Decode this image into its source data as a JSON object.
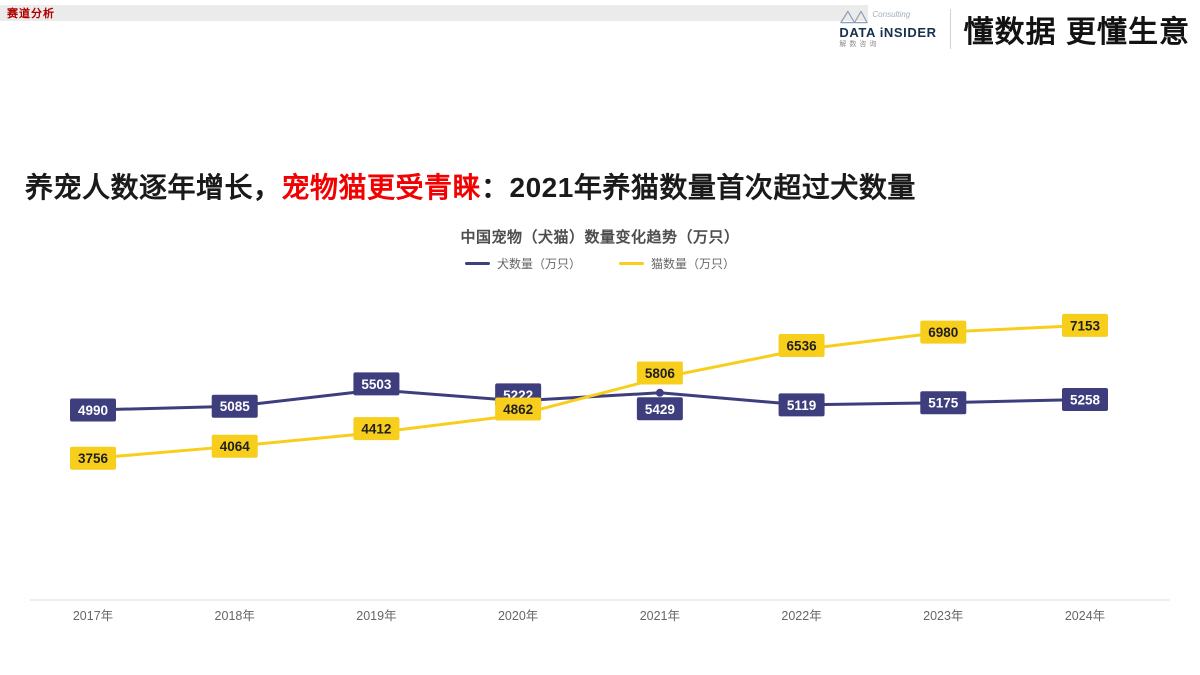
{
  "page": {
    "tag": "赛道分析",
    "brand": {
      "logo_text": "DATA iNSIDER",
      "logo_sub": "解数咨询",
      "logo_script": "Consulting",
      "slogan": "懂数据 更懂生意"
    },
    "title": {
      "part1": "养宠人数逐年增长，",
      "highlight": "宠物猫更受青睐",
      "part2": "：2021年养猫数量首次超过犬数量"
    },
    "colors": {
      "title_red": "#f30000",
      "dog_series": "#3e3e7e",
      "cat_series": "#f8ce1c"
    }
  },
  "chart_data": {
    "type": "line",
    "title": "中国宠物（犬猫）数量变化趋势（万只）",
    "categories": [
      "2017年",
      "2018年",
      "2019年",
      "2020年",
      "2021年",
      "2022年",
      "2023年",
      "2024年"
    ],
    "series": [
      {
        "name": "犬数量（万只）",
        "color": "#3e3e7e",
        "label_text_color": "#ffffff",
        "values": [
          4990,
          5085,
          5503,
          5222,
          5429,
          5119,
          5175,
          5258
        ]
      },
      {
        "name": "猫数量（万只）",
        "color": "#f8ce1c",
        "label_text_color": "#1f1f1f",
        "values": [
          3756,
          4064,
          4412,
          4862,
          5806,
          6536,
          6980,
          7153
        ]
      }
    ],
    "ylim": [
      3200,
      7800
    ],
    "grid": false,
    "legend_position": "top",
    "annotation": "2021年猫数量首次超过犬数量"
  }
}
